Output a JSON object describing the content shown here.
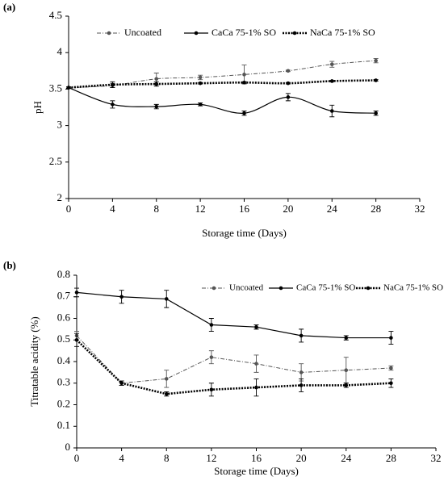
{
  "chart_data": [
    {
      "type": "line",
      "panel_label": "(a)",
      "x_label": "Storage time (Days)",
      "y_label": "pH",
      "x": [
        0,
        4,
        8,
        12,
        16,
        20,
        24,
        28
      ],
      "xlim": [
        0,
        32
      ],
      "xticks": [
        0,
        4,
        8,
        12,
        16,
        20,
        24,
        28,
        32
      ],
      "ylim": [
        2,
        4.5
      ],
      "yticks": [
        2,
        2.5,
        3,
        3.5,
        4,
        4.5
      ],
      "smooth": true,
      "legend": "top",
      "series": [
        {
          "name": "Uncoated",
          "color": "#555555",
          "linestyle": "dashdot",
          "values": [
            3.52,
            3.55,
            3.64,
            3.66,
            3.7,
            3.75,
            3.84,
            3.89
          ],
          "errors": [
            0.01,
            0.03,
            0.08,
            0.03,
            0.13,
            0.01,
            0.04,
            0.03
          ]
        },
        {
          "name": "CaCa 75-1% SO",
          "color": "#000000",
          "linestyle": "solid",
          "values": [
            3.52,
            3.29,
            3.26,
            3.29,
            3.17,
            3.39,
            3.2,
            3.17
          ],
          "errors": [
            0.01,
            0.05,
            0.03,
            0.02,
            0.03,
            0.05,
            0.08,
            0.03
          ]
        },
        {
          "name": "NaCa 75-1% SO",
          "color": "#000000",
          "linestyle": "dotted",
          "values": [
            3.52,
            3.56,
            3.57,
            3.58,
            3.59,
            3.58,
            3.61,
            3.62
          ],
          "errors": [
            0.01,
            0.04,
            0.03,
            0.01,
            0.01,
            0.01,
            0.01,
            0.01
          ]
        }
      ]
    },
    {
      "type": "line",
      "panel_label": "(b)",
      "x_label": "Storage time (Days)",
      "y_label": "Titratable acidity (%)",
      "x": [
        0,
        4,
        8,
        12,
        16,
        20,
        24,
        28
      ],
      "xlim": [
        0,
        32
      ],
      "xticks": [
        0,
        4,
        8,
        12,
        16,
        20,
        24,
        28,
        32
      ],
      "ylim": [
        0,
        0.8
      ],
      "yticks": [
        0,
        0.1,
        0.2,
        0.3,
        0.4,
        0.5,
        0.6,
        0.7,
        0.8
      ],
      "smooth": false,
      "legend": "top-right",
      "series": [
        {
          "name": "Uncoated",
          "color": "#555555",
          "linestyle": "dashdot",
          "values": [
            0.52,
            0.3,
            0.32,
            0.42,
            0.39,
            0.35,
            0.36,
            0.37
          ],
          "errors": [
            0.02,
            0.01,
            0.04,
            0.03,
            0.04,
            0.04,
            0.06,
            0.01
          ]
        },
        {
          "name": "CaCa 75-1% SO",
          "color": "#000000",
          "linestyle": "solid",
          "values": [
            0.72,
            0.7,
            0.69,
            0.57,
            0.56,
            0.52,
            0.51,
            0.51
          ],
          "errors": [
            0.02,
            0.03,
            0.04,
            0.03,
            0.01,
            0.03,
            0.01,
            0.03
          ]
        },
        {
          "name": "NaCa 75-1% SO",
          "color": "#000000",
          "linestyle": "dotted",
          "values": [
            0.5,
            0.3,
            0.25,
            0.27,
            0.28,
            0.29,
            0.29,
            0.3
          ],
          "errors": [
            0.03,
            0.01,
            0.01,
            0.03,
            0.04,
            0.03,
            0.01,
            0.02
          ]
        }
      ]
    }
  ]
}
